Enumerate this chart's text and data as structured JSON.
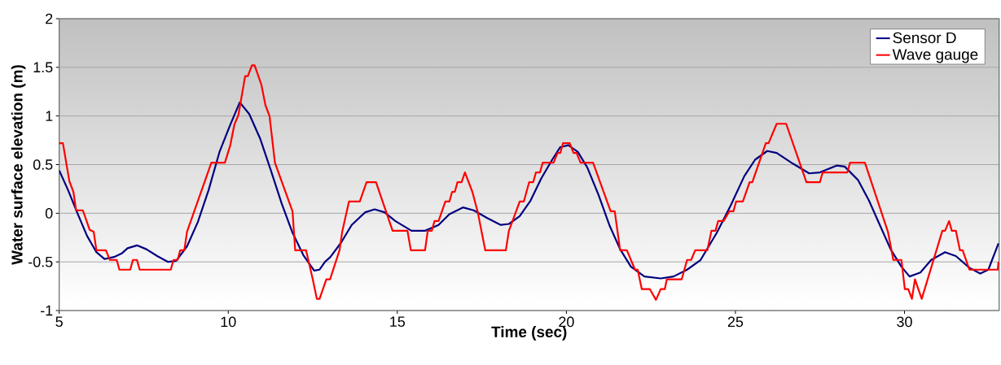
{
  "chart_data": {
    "type": "line",
    "xlabel": "Time (sec)",
    "ylabel": "Water surface elevation (m)",
    "xlim": [
      5,
      32.8
    ],
    "xticks": [
      5,
      10,
      15,
      20,
      25,
      30
    ],
    "ylim": [
      -1,
      2
    ],
    "yticks": [
      -1,
      -0.5,
      0,
      0.5,
      1,
      1.5,
      2
    ],
    "grid": "y",
    "legend": "top right",
    "marker": "none",
    "line_style": "solid",
    "series": [
      {
        "name": "Sensor D",
        "color": "#000080",
        "x": [
          5.0,
          5.26,
          5.54,
          5.82,
          6.1,
          6.34,
          6.62,
          6.86,
          7.02,
          7.3,
          7.58,
          7.9,
          8.22,
          8.46,
          8.78,
          9.1,
          9.42,
          9.74,
          10.06,
          10.34,
          10.62,
          10.94,
          11.26,
          11.58,
          11.9,
          12.22,
          12.54,
          12.7,
          12.86,
          13.02,
          13.34,
          13.65,
          14.05,
          14.33,
          14.62,
          14.94,
          15.42,
          15.82,
          16.22,
          16.54,
          16.94,
          17.26,
          17.66,
          18.06,
          18.3,
          18.62,
          18.94,
          19.26,
          19.58,
          19.82,
          20.06,
          20.34,
          20.62,
          20.95,
          21.27,
          21.59,
          21.91,
          22.31,
          22.79,
          23.17,
          23.57,
          23.97,
          24.45,
          24.86,
          25.26,
          25.58,
          25.94,
          26.22,
          26.7,
          27.18,
          27.5,
          27.99,
          28.23,
          28.63,
          28.95,
          29.27,
          29.59,
          29.91,
          30.15,
          30.47,
          30.79,
          31.2,
          31.52,
          31.92,
          32.24,
          32.48,
          32.78
        ],
        "values": [
          0.44,
          0.24,
          0.0,
          -0.23,
          -0.4,
          -0.47,
          -0.45,
          -0.41,
          -0.36,
          -0.33,
          -0.37,
          -0.44,
          -0.5,
          -0.49,
          -0.34,
          -0.09,
          0.24,
          0.63,
          0.91,
          1.14,
          1.02,
          0.77,
          0.44,
          0.1,
          -0.2,
          -0.43,
          -0.59,
          -0.58,
          -0.5,
          -0.45,
          -0.3,
          -0.12,
          0.01,
          0.04,
          0.01,
          -0.08,
          -0.18,
          -0.18,
          -0.12,
          -0.01,
          0.06,
          0.03,
          -0.05,
          -0.12,
          -0.11,
          -0.03,
          0.13,
          0.36,
          0.55,
          0.68,
          0.7,
          0.63,
          0.47,
          0.19,
          -0.12,
          -0.37,
          -0.55,
          -0.65,
          -0.67,
          -0.65,
          -0.58,
          -0.48,
          -0.2,
          0.08,
          0.38,
          0.55,
          0.64,
          0.62,
          0.51,
          0.41,
          0.42,
          0.49,
          0.48,
          0.34,
          0.13,
          -0.12,
          -0.37,
          -0.55,
          -0.65,
          -0.61,
          -0.48,
          -0.4,
          -0.44,
          -0.56,
          -0.62,
          -0.58,
          -0.31
        ]
      },
      {
        "name": "Wave gauge",
        "color": "#ff0000",
        "x": [
          5.0,
          5.11,
          5.3,
          5.42,
          5.5,
          5.7,
          5.9,
          6.02,
          6.1,
          6.38,
          6.5,
          6.7,
          6.78,
          7.1,
          7.18,
          7.3,
          7.38,
          8.3,
          8.38,
          8.5,
          8.58,
          8.7,
          8.78,
          9.5,
          9.9,
          10.06,
          10.18,
          10.3,
          10.5,
          10.58,
          10.7,
          10.78,
          10.98,
          11.1,
          11.22,
          11.38,
          11.9,
          11.98,
          12.3,
          12.5,
          12.62,
          12.7,
          12.9,
          13.01,
          13.29,
          13.37,
          13.57,
          13.89,
          14.09,
          14.37,
          14.86,
          15.3,
          15.4,
          15.82,
          15.9,
          16.02,
          16.1,
          16.22,
          16.42,
          16.54,
          16.62,
          16.7,
          16.78,
          16.9,
          17.0,
          17.22,
          17.38,
          17.6,
          18.21,
          18.3,
          18.62,
          18.74,
          18.9,
          19.02,
          19.1,
          19.22,
          19.3,
          19.62,
          19.74,
          19.82,
          19.9,
          20.1,
          20.21,
          20.3,
          20.42,
          20.79,
          21.31,
          21.43,
          21.59,
          21.79,
          22.03,
          22.11,
          22.23,
          22.47,
          22.65,
          22.79,
          22.91,
          22.97,
          23.41,
          23.57,
          23.69,
          23.81,
          24.17,
          24.29,
          24.41,
          24.49,
          24.65,
          24.82,
          24.94,
          25.02,
          25.22,
          25.42,
          25.5,
          25.9,
          25.98,
          26.22,
          26.5,
          27.1,
          27.5,
          27.58,
          28.31,
          28.39,
          28.83,
          29.51,
          29.67,
          29.91,
          30.01,
          30.11,
          30.22,
          30.31,
          30.51,
          31.12,
          31.2,
          31.32,
          31.4,
          31.52,
          31.64,
          31.72,
          31.92,
          32.76,
          32.78
        ],
        "values": [
          0.72,
          0.72,
          0.33,
          0.22,
          0.03,
          0.03,
          -0.17,
          -0.19,
          -0.38,
          -0.38,
          -0.48,
          -0.48,
          -0.58,
          -0.58,
          -0.48,
          -0.48,
          -0.58,
          -0.58,
          -0.48,
          -0.48,
          -0.38,
          -0.38,
          -0.19,
          0.52,
          0.52,
          0.7,
          0.91,
          1.01,
          1.41,
          1.41,
          1.52,
          1.52,
          1.32,
          1.11,
          1.0,
          0.52,
          0.02,
          -0.38,
          -0.38,
          -0.68,
          -0.88,
          -0.88,
          -0.68,
          -0.68,
          -0.38,
          -0.19,
          0.12,
          0.12,
          0.32,
          0.32,
          -0.18,
          -0.18,
          -0.38,
          -0.38,
          -0.18,
          -0.18,
          -0.08,
          -0.08,
          0.12,
          0.12,
          0.22,
          0.22,
          0.32,
          0.32,
          0.42,
          0.22,
          0.01,
          -0.38,
          -0.38,
          -0.18,
          0.12,
          0.12,
          0.32,
          0.32,
          0.42,
          0.42,
          0.52,
          0.52,
          0.62,
          0.62,
          0.72,
          0.72,
          0.62,
          0.62,
          0.52,
          0.52,
          0.02,
          0.02,
          -0.38,
          -0.38,
          -0.58,
          -0.58,
          -0.78,
          -0.78,
          -0.89,
          -0.78,
          -0.78,
          -0.68,
          -0.68,
          -0.48,
          -0.48,
          -0.38,
          -0.38,
          -0.18,
          -0.18,
          -0.08,
          -0.08,
          0.02,
          0.02,
          0.12,
          0.12,
          0.32,
          0.32,
          0.72,
          0.72,
          0.92,
          0.92,
          0.32,
          0.32,
          0.42,
          0.42,
          0.52,
          0.52,
          -0.19,
          -0.48,
          -0.48,
          -0.78,
          -0.78,
          -0.88,
          -0.68,
          -0.88,
          -0.18,
          -0.18,
          -0.08,
          -0.18,
          -0.18,
          -0.38,
          -0.38,
          -0.58,
          -0.58,
          -0.5
        ]
      }
    ]
  }
}
